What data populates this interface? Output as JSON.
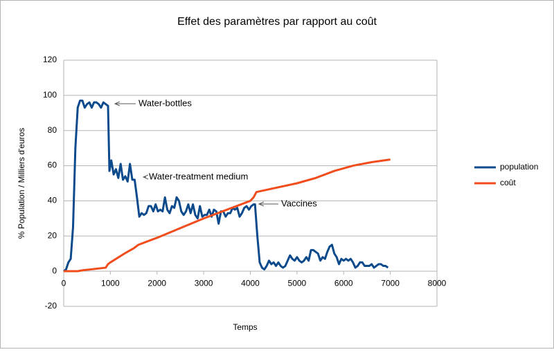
{
  "chart_data": {
    "type": "line",
    "title": "Effet des paramètres par rapport au coût",
    "x_label": "Temps",
    "y_label": "% Population / Milliers d'euros",
    "xlim": [
      0,
      8000
    ],
    "xticks": [
      0,
      1000,
      2000,
      3000,
      4000,
      5000,
      6000,
      7000,
      8000
    ],
    "ylim": [
      -20,
      120
    ],
    "yticks": [
      -20,
      0,
      20,
      40,
      60,
      80,
      100,
      120
    ],
    "grid": true,
    "legend": "right",
    "series": [
      {
        "name": "population",
        "color": "#0c4a8c",
        "x": [
          0,
          50,
          100,
          150,
          200,
          250,
          300,
          350,
          400,
          450,
          500,
          550,
          600,
          650,
          700,
          750,
          800,
          850,
          900,
          950,
          980,
          1020,
          1070,
          1120,
          1170,
          1220,
          1270,
          1320,
          1370,
          1420,
          1470,
          1520,
          1570,
          1620,
          1670,
          1720,
          1770,
          1820,
          1870,
          1920,
          1970,
          2020,
          2070,
          2120,
          2170,
          2220,
          2270,
          2320,
          2370,
          2420,
          2470,
          2520,
          2570,
          2620,
          2670,
          2720,
          2770,
          2820,
          2870,
          2920,
          2970,
          3020,
          3070,
          3120,
          3170,
          3220,
          3270,
          3320,
          3370,
          3420,
          3470,
          3520,
          3570,
          3620,
          3670,
          3720,
          3770,
          3820,
          3870,
          3920,
          3970,
          4020,
          4070,
          4100,
          4150,
          4200,
          4250,
          4300,
          4350,
          4400,
          4450,
          4500,
          4550,
          4600,
          4650,
          4700,
          4750,
          4800,
          4850,
          4900,
          4950,
          5000,
          5050,
          5100,
          5150,
          5200,
          5250,
          5300,
          5350,
          5400,
          5450,
          5500,
          5550,
          5600,
          5650,
          5700,
          5750,
          5800,
          5850,
          5900,
          5950,
          6000,
          6050,
          6100,
          6150,
          6200,
          6250,
          6300,
          6350,
          6400,
          6450,
          6500,
          6550,
          6600,
          6650,
          6700,
          6750,
          6800,
          6850,
          6900,
          6950
        ],
        "values": [
          0,
          1,
          5,
          7,
          25,
          70,
          93,
          97,
          97,
          93,
          95,
          96,
          93,
          96,
          96,
          95,
          93,
          96,
          95,
          94,
          57,
          63,
          55,
          58,
          53,
          61,
          52,
          54,
          51,
          61,
          52,
          52,
          42,
          31,
          33,
          32,
          33,
          37,
          37,
          34,
          38,
          34,
          35,
          34,
          42,
          35,
          33,
          37,
          36,
          42,
          40,
          34,
          32,
          34,
          38,
          33,
          38,
          32,
          30,
          37,
          31,
          32,
          32,
          35,
          31,
          35,
          34,
          27,
          34,
          34,
          31,
          33,
          33,
          36,
          35,
          36,
          31,
          33,
          36,
          37,
          35,
          37,
          38,
          38,
          20,
          5,
          2,
          1,
          3,
          6,
          4,
          5,
          3,
          5,
          3,
          2,
          3,
          6,
          9,
          7,
          6,
          8,
          6,
          5,
          6,
          8,
          6,
          12,
          12,
          11,
          10,
          6,
          8,
          7,
          11,
          14,
          15,
          10,
          8,
          4,
          7,
          6,
          7,
          6,
          7,
          5,
          2,
          3,
          5,
          5,
          3,
          3,
          3,
          4,
          2,
          3,
          4,
          4,
          3,
          3,
          2
        ]
      },
      {
        "name": "coût",
        "color": "#f04c1c",
        "x": [
          0,
          300,
          400,
          900,
          950,
          1000,
          1300,
          1500,
          1600,
          2000,
          3000,
          4000,
          4070,
          4130,
          4300,
          5000,
          5400,
          5800,
          6200,
          6600,
          7000
        ],
        "values": [
          0,
          0,
          0.5,
          2,
          4,
          5,
          10,
          13,
          15,
          19,
          30,
          40,
          42,
          45,
          46,
          50,
          53,
          57,
          60,
          62,
          63.5
        ]
      }
    ],
    "annotations": [
      "Water-bottles",
      "Water-treatment medium",
      "Vaccines"
    ]
  }
}
